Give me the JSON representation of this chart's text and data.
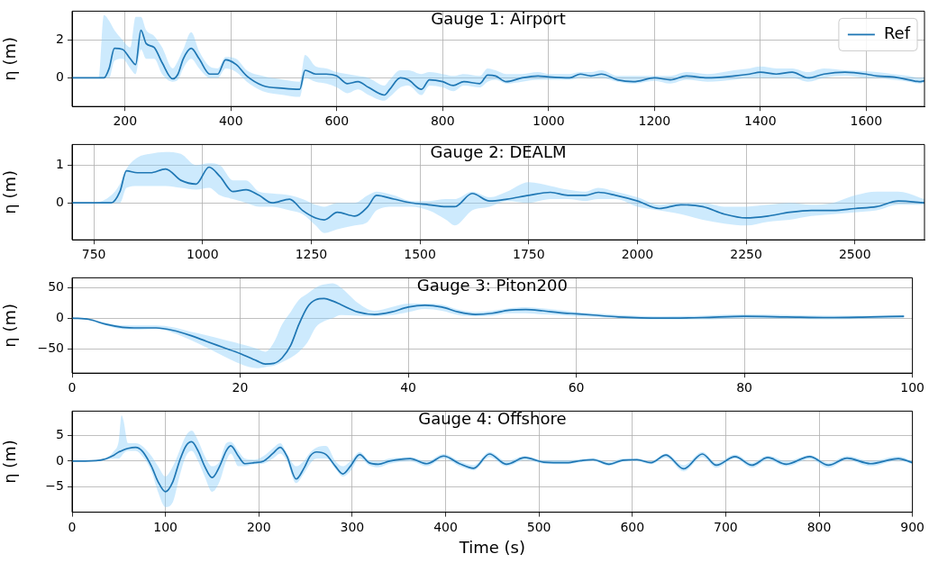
{
  "chart_data": [
    {
      "type": "line",
      "title": "Gauge 1: Airport",
      "ylabel": "η (m)",
      "xlim": [
        100,
        1710
      ],
      "xticks": [
        200,
        400,
        600,
        800,
        1000,
        1200,
        1400,
        1600
      ],
      "ylim": [
        -1.5,
        3.5
      ],
      "yticks": [
        0,
        2
      ],
      "grid": true,
      "legend": "top right",
      "series": [
        {
          "name": "Ref",
          "color": "#1f77b4",
          "x": [
            100,
            150,
            160,
            170,
            180,
            195,
            210,
            220,
            230,
            240,
            255,
            270,
            290,
            300,
            310,
            325,
            340,
            360,
            375,
            390,
            410,
            430,
            460,
            500,
            530,
            540,
            560,
            580,
            600,
            620,
            640,
            660,
            690,
            700,
            720,
            735,
            760,
            775,
            800,
            820,
            840,
            870,
            885,
            900,
            920,
            950,
            980,
            1000,
            1040,
            1060,
            1080,
            1100,
            1130,
            1160,
            1200,
            1230,
            1260,
            1300,
            1350,
            1380,
            1400,
            1430,
            1460,
            1490,
            1520,
            1560,
            1600,
            1620,
            1650,
            1680,
            1700,
            1710
          ],
          "values": [
            0,
            0,
            0,
            0.5,
            1.55,
            1.5,
            1.0,
            0.7,
            2.5,
            1.8,
            1.6,
            0.8,
            -0.05,
            0.2,
            1.0,
            1.55,
            1.0,
            0.2,
            0.2,
            0.95,
            0.7,
            0.1,
            -0.4,
            -0.55,
            -0.6,
            0.4,
            0.2,
            0.2,
            0.1,
            -0.3,
            -0.2,
            -0.5,
            -0.9,
            -0.6,
            0.0,
            -0.1,
            -0.6,
            -0.1,
            -0.2,
            -0.4,
            -0.2,
            -0.3,
            0.15,
            0.1,
            -0.2,
            0,
            0.1,
            0.05,
            0,
            0.2,
            0.1,
            0.2,
            -0.1,
            -0.2,
            0,
            -0.1,
            0.1,
            0,
            0.1,
            0.2,
            0.3,
            0.2,
            0.3,
            0,
            0.2,
            0.3,
            0.2,
            0.1,
            0.05,
            -0.1,
            -0.2,
            -0.15
          ],
          "lower": [
            0,
            0,
            0,
            0,
            0.9,
            1.0,
            0.5,
            0.2,
            1.5,
            1.0,
            1.0,
            0.2,
            -0.2,
            -0.1,
            0.5,
            1.0,
            0.5,
            0,
            0,
            0.5,
            0.3,
            -0.2,
            -0.7,
            -0.9,
            -1.0,
            0,
            -0.2,
            -0.3,
            -0.5,
            -0.8,
            -0.6,
            -0.9,
            -1.2,
            -1.0,
            -0.5,
            -0.4,
            -0.9,
            -0.4,
            -0.5,
            -0.7,
            -0.4,
            -0.5,
            -0.2,
            -0.1,
            -0.3,
            -0.2,
            -0.1,
            -0.1,
            -0.1,
            0,
            0,
            0,
            -0.2,
            -0.3,
            -0.15,
            -0.3,
            -0.1,
            -0.2,
            -0.1,
            0,
            0,
            0,
            0,
            -0.2,
            0,
            0.1,
            0,
            0,
            -0.1,
            -0.2,
            -0.3,
            -0.25
          ],
          "upper": [
            0,
            0,
            3.3,
            3.0,
            2.5,
            2.0,
            1.6,
            3.2,
            3.2,
            2.5,
            2.2,
            1.6,
            0.5,
            0.9,
            1.5,
            2.4,
            1.4,
            0.6,
            0.5,
            1.1,
            1.0,
            0.4,
            0.1,
            -0.1,
            -0.2,
            1.2,
            0.6,
            0.5,
            0.3,
            0.2,
            0.1,
            0,
            -0.4,
            -0.1,
            0.4,
            0.4,
            0.2,
            0.3,
            0.2,
            0.1,
            0.2,
            0.1,
            0.5,
            0.4,
            0.2,
            0.2,
            0.3,
            0.2,
            0.2,
            0.3,
            0.3,
            0.4,
            0.1,
            0.1,
            0.1,
            0.1,
            0.3,
            0.2,
            0.4,
            0.5,
            0.6,
            0.5,
            0.5,
            0.3,
            0.5,
            0.4,
            0.35,
            0.3,
            0.2,
            0.1,
            0,
            0.05
          ]
        }
      ]
    },
    {
      "type": "line",
      "title": "Gauge 2: DEALM",
      "ylabel": "η (m)",
      "xlim": [
        700,
        2660
      ],
      "xticks": [
        750,
        1000,
        1250,
        1500,
        1750,
        2000,
        2250,
        2500
      ],
      "ylim": [
        -0.98,
        1.55
      ],
      "yticks": [
        0,
        1
      ],
      "grid": true,
      "series": [
        {
          "color": "#1f77b4",
          "x": [
            700,
            750,
            790,
            810,
            825,
            850,
            880,
            915,
            950,
            985,
            1015,
            1040,
            1070,
            1100,
            1130,
            1160,
            1200,
            1230,
            1260,
            1280,
            1310,
            1350,
            1380,
            1400,
            1440,
            1480,
            1520,
            1560,
            1580,
            1620,
            1660,
            1700,
            1750,
            1800,
            1840,
            1880,
            1910,
            1950,
            2000,
            2050,
            2100,
            2150,
            2200,
            2250,
            2300,
            2350,
            2400,
            2450,
            2500,
            2550,
            2600,
            2660
          ],
          "values": [
            0,
            0,
            0,
            0.3,
            0.85,
            0.8,
            0.8,
            0.9,
            0.6,
            0.5,
            0.95,
            0.7,
            0.3,
            0.35,
            0.2,
            0.0,
            0.1,
            -0.2,
            -0.4,
            -0.45,
            -0.25,
            -0.35,
            -0.1,
            0.2,
            0.1,
            0.0,
            -0.05,
            -0.1,
            -0.1,
            0.25,
            0.05,
            0.1,
            0.2,
            0.28,
            0.2,
            0.2,
            0.28,
            0.2,
            0.05,
            -0.15,
            -0.05,
            -0.1,
            -0.3,
            -0.4,
            -0.35,
            -0.25,
            -0.2,
            -0.2,
            -0.15,
            -0.1,
            0.05,
            0.0
          ],
          "lower": [
            0,
            0,
            0,
            0.0,
            0.4,
            0.45,
            0.45,
            0.45,
            0.4,
            0.35,
            0.4,
            0.2,
            0.1,
            0.0,
            -0.1,
            -0.1,
            -0.2,
            -0.3,
            -0.6,
            -0.8,
            -0.7,
            -0.6,
            -0.5,
            -0.2,
            -0.1,
            -0.1,
            -0.2,
            -0.45,
            -0.6,
            -0.2,
            -0.1,
            0.05,
            0,
            0.1,
            0.1,
            0.05,
            0.1,
            0.1,
            -0.1,
            -0.2,
            -0.3,
            -0.45,
            -0.55,
            -0.6,
            -0.5,
            -0.45,
            -0.35,
            -0.3,
            -0.25,
            -0.2,
            -0.05,
            -0.05
          ],
          "upper": [
            0,
            0,
            0.2,
            0.5,
            0.9,
            1.2,
            1.3,
            1.35,
            1.3,
            1.0,
            1.05,
            1.0,
            0.6,
            0.6,
            0.3,
            0.25,
            0.2,
            0.1,
            -0.05,
            -0.1,
            0.0,
            0.0,
            0.2,
            0.3,
            0.2,
            0.05,
            0.05,
            0.1,
            0.1,
            0.3,
            0.15,
            0.3,
            0.55,
            0.45,
            0.35,
            0.3,
            0.4,
            0.3,
            0.15,
            -0.05,
            0.0,
            0.0,
            -0.1,
            -0.1,
            -0.05,
            0.0,
            -0.05,
            0.0,
            0.2,
            0.3,
            0.3,
            0.1
          ]
        }
      ]
    },
    {
      "type": "line",
      "title": "Gauge 3: Piton200",
      "ylabel": "η (m)",
      "xlim": [
        0,
        100
      ],
      "xticks": [
        0,
        20,
        40,
        60,
        80,
        100
      ],
      "ylim": [
        -90,
        66
      ],
      "yticks": [
        {
          "value": -50,
          "label": "−50"
        },
        0,
        50
      ],
      "grid": true,
      "series": [
        {
          "color": "#1f77b4",
          "x": [
            0,
            2,
            4,
            6,
            8,
            10,
            12,
            14,
            16,
            18,
            20,
            22,
            23,
            24,
            25,
            26,
            27,
            28,
            29,
            30,
            31,
            32,
            34,
            36,
            38,
            40,
            42,
            44,
            46,
            48,
            50,
            52,
            54,
            56,
            58,
            60,
            62,
            65,
            70,
            75,
            80,
            85,
            90,
            95,
            99
          ],
          "values": [
            0,
            -2,
            -10,
            -15,
            -16,
            -16,
            -20,
            -28,
            -38,
            -48,
            -58,
            -70,
            -75,
            -74,
            -65,
            -45,
            -10,
            18,
            30,
            32,
            28,
            22,
            10,
            6,
            10,
            18,
            21,
            18,
            10,
            6,
            8,
            13,
            14,
            12,
            9,
            7,
            5,
            2,
            0,
            1,
            3,
            2,
            1,
            2,
            3
          ],
          "lower": [
            0,
            -3,
            -12,
            -18,
            -19,
            -18,
            -24,
            -35,
            -48,
            -62,
            -75,
            -82,
            -80,
            -78,
            -72,
            -65,
            -55,
            -40,
            -15,
            -5,
            0,
            5,
            4,
            3,
            5,
            10,
            15,
            12,
            5,
            3,
            4,
            8,
            8,
            6,
            5,
            3,
            2,
            0,
            -2,
            -2,
            0,
            -1,
            -2,
            -1,
            0
          ],
          "upper": [
            0,
            -1,
            -8,
            -12,
            -12,
            -12,
            -15,
            -22,
            -28,
            -35,
            -42,
            -50,
            -55,
            -40,
            -10,
            10,
            30,
            40,
            50,
            55,
            57,
            50,
            25,
            12,
            18,
            24,
            24,
            22,
            14,
            10,
            12,
            16,
            18,
            16,
            13,
            10,
            8,
            5,
            3,
            4,
            6,
            5,
            4,
            4,
            5
          ]
        }
      ]
    },
    {
      "type": "line",
      "title": "Gauge 4: Offshore",
      "xlabel": "Time (s)",
      "ylabel": "η (m)",
      "xlim": [
        0,
        900
      ],
      "xticks": [
        0,
        100,
        200,
        300,
        400,
        500,
        600,
        700,
        800,
        900
      ],
      "ylim": [
        -10,
        9.8
      ],
      "yticks": [
        {
          "value": -5,
          "label": "−5"
        },
        0,
        5
      ],
      "grid": true,
      "series": [
        {
          "color": "#1f77b4",
          "x": [
            0,
            30,
            45,
            50,
            53,
            55,
            60,
            68,
            75,
            85,
            92,
            100,
            108,
            115,
            122,
            128,
            135,
            142,
            150,
            158,
            165,
            170,
            178,
            185,
            195,
            205,
            215,
            223,
            230,
            240,
            248,
            255,
            262,
            272,
            282,
            290,
            298,
            308,
            318,
            328,
            340,
            362,
            380,
            398,
            415,
            430,
            447,
            465,
            485,
            505,
            530,
            545,
            558,
            575,
            590,
            605,
            620,
            636,
            655,
            675,
            690,
            710,
            728,
            745,
            765,
            790,
            810,
            830,
            855,
            885,
            900
          ],
          "values": [
            0,
            0.2,
            1.2,
            1.8,
            2,
            2.2,
            2.5,
            2.7,
            2,
            -1,
            -4,
            -6,
            -4,
            0,
            3,
            3.8,
            2,
            -1,
            -3.2,
            -1,
            2,
            3,
            1,
            -0.5,
            -0.3,
            0,
            1.5,
            2.7,
            1,
            -3.5,
            -1.5,
            1,
            1.8,
            1.3,
            -1,
            -2.5,
            -1,
            1.3,
            -0.3,
            -0.6,
            0,
            0.5,
            -0.5,
            1,
            -0.5,
            -1.4,
            1.4,
            -0.6,
            0.7,
            -0.2,
            -0.3,
            0.1,
            0.3,
            -0.6,
            0.2,
            0.3,
            -0.3,
            1.2,
            -1.5,
            1.4,
            -0.8,
            0.9,
            -0.8,
            0.7,
            -0.6,
            0.9,
            -0.8,
            0.6,
            -0.5,
            0.5,
            -0.3
          ],
          "lower": [
            0,
            0,
            0.5,
            0.5,
            1,
            1.5,
            2,
            2,
            1,
            -2,
            -6,
            -9,
            -8,
            -3,
            1,
            2,
            0,
            -3,
            -6,
            -4,
            0,
            1.5,
            -1,
            -1,
            -0.6,
            -0.5,
            0.5,
            1.5,
            0,
            -4.3,
            -2.5,
            -0.5,
            0.5,
            0.5,
            -1.5,
            -3,
            -2,
            0.5,
            -0.8,
            -1.2,
            -0.5,
            0,
            -1,
            0.5,
            -1,
            -1.8,
            0.8,
            -1,
            0.2,
            -0.5,
            -0.6,
            -0.2,
            0,
            -0.9,
            -0.1,
            0,
            -0.6,
            0.7,
            -2,
            0.8,
            -1.3,
            0.5,
            -1.3,
            0.2,
            -1,
            0.4,
            -1.3,
            0.2,
            -1,
            0.1,
            -0.6
          ],
          "upper": [
            0,
            0.3,
            2,
            4,
            9,
            8,
            3.5,
            3.5,
            3,
            1,
            -1,
            -3,
            -1,
            2,
            5,
            6,
            4,
            1,
            -1,
            0,
            3.5,
            3.8,
            2,
            0.5,
            0.3,
            1,
            2.5,
            3.5,
            1.5,
            -1,
            0,
            1.7,
            2.7,
            3,
            0,
            -1,
            0,
            1.8,
            0.2,
            0,
            0.5,
            0.8,
            0,
            1.4,
            0,
            -0.8,
            1.8,
            0,
            1,
            0.2,
            0.2,
            0.4,
            0.6,
            -0.2,
            0.5,
            0.5,
            0,
            1.5,
            -0.8,
            1.8,
            -0.3,
            1.3,
            -0.3,
            1.1,
            0,
            1.2,
            -0.3,
            1,
            0,
            0.9,
            0
          ]
        }
      ]
    }
  ]
}
